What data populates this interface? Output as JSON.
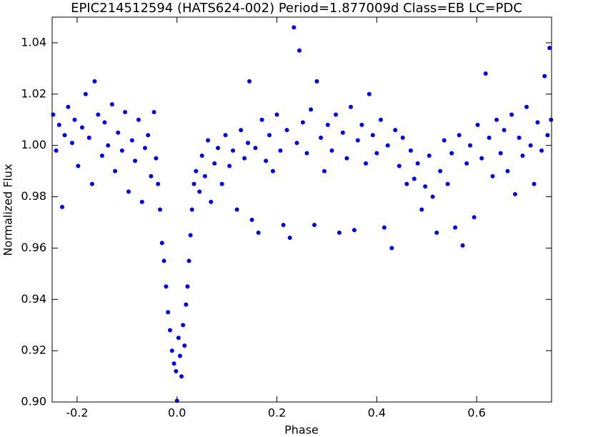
{
  "chart_data": {
    "type": "scatter",
    "title": "EPIC214512594 (HATS624-002)  Period=1.877009d  Class=EB  LC=PDC",
    "x_label": "Phase",
    "y_label": "Normalized Flux",
    "xlim": [
      -0.25,
      0.75
    ],
    "ylim": [
      0.9,
      1.05
    ],
    "xticks": [
      -0.2,
      {
        "value": 0,
        "label": "0.0"
      },
      0.2,
      0.4,
      0.6
    ],
    "yticks": [
      {
        "value": 0.9,
        "label": "0.90"
      },
      0.92,
      0.94,
      0.96,
      0.98,
      {
        "value": 1,
        "label": "1.00"
      },
      1.02,
      1.04
    ],
    "color": "#0000ff",
    "x": [
      -0.248,
      -0.242,
      -0.236,
      -0.23,
      -0.225,
      -0.218,
      -0.21,
      -0.205,
      -0.198,
      -0.19,
      -0.183,
      -0.176,
      -0.17,
      -0.165,
      -0.158,
      -0.15,
      -0.145,
      -0.138,
      -0.13,
      -0.124,
      -0.118,
      -0.11,
      -0.104,
      -0.097,
      -0.09,
      -0.084,
      -0.077,
      -0.07,
      -0.064,
      -0.058,
      -0.052,
      -0.046,
      -0.042,
      -0.038,
      -0.034,
      -0.03,
      -0.026,
      -0.022,
      -0.018,
      -0.014,
      -0.01,
      -0.006,
      -0.002,
      0.0,
      0.003,
      0.006,
      0.009,
      0.012,
      0.015,
      0.018,
      0.021,
      0.024,
      0.027,
      0.03,
      0.034,
      0.038,
      0.045,
      0.05,
      0.056,
      0.062,
      0.068,
      0.075,
      0.082,
      0.09,
      0.097,
      0.105,
      0.112,
      0.12,
      0.128,
      0.135,
      0.142,
      0.145,
      0.15,
      0.157,
      0.163,
      0.17,
      0.178,
      0.185,
      0.192,
      0.2,
      0.207,
      0.213,
      0.22,
      0.226,
      0.234,
      0.24,
      0.245,
      0.252,
      0.26,
      0.268,
      0.275,
      0.28,
      0.288,
      0.295,
      0.302,
      0.31,
      0.318,
      0.325,
      0.332,
      0.34,
      0.348,
      0.355,
      0.362,
      0.37,
      0.378,
      0.385,
      0.392,
      0.4,
      0.408,
      0.415,
      0.422,
      0.43,
      0.437,
      0.445,
      0.452,
      0.46,
      0.468,
      0.475,
      0.482,
      0.49,
      0.497,
      0.505,
      0.512,
      0.52,
      0.527,
      0.535,
      0.542,
      0.55,
      0.557,
      0.565,
      0.572,
      0.58,
      0.587,
      0.595,
      0.602,
      0.61,
      0.618,
      0.625,
      0.632,
      0.64,
      0.648,
      0.655,
      0.662,
      0.67,
      0.677,
      0.685,
      0.692,
      0.7,
      0.708,
      0.715,
      0.722,
      0.73,
      0.736,
      0.742,
      0.746,
      0.749
    ],
    "y": [
      1.012,
      0.998,
      1.008,
      0.976,
      1.004,
      1.015,
      1.001,
      1.01,
      0.992,
      1.007,
      1.02,
      1.003,
      0.985,
      1.025,
      1.012,
      0.996,
      1.009,
      1.0,
      1.016,
      0.99,
      1.005,
      0.998,
      1.013,
      0.982,
      1.002,
      0.994,
      1.01,
      0.978,
      0.999,
      1.004,
      0.988,
      1.013,
      0.995,
      0.985,
      0.975,
      0.962,
      0.955,
      0.945,
      0.935,
      0.928,
      0.92,
      0.915,
      0.912,
      0.9005,
      0.925,
      0.918,
      0.91,
      0.93,
      0.922,
      0.938,
      0.945,
      0.955,
      0.965,
      0.975,
      0.985,
      0.99,
      0.982,
      0.996,
      0.988,
      1.002,
      0.978,
      0.993,
      0.999,
      0.985,
      1.004,
      0.992,
      0.998,
      0.975,
      1.006,
      0.995,
      1.001,
      1.025,
      0.971,
      0.999,
      0.966,
      1.01,
      0.994,
      1.004,
      0.99,
      1.012,
      0.998,
      0.969,
      1.006,
      0.964,
      1.046,
      1.001,
      1.037,
      1.009,
      0.997,
      1.014,
      0.969,
      1.025,
      1.003,
      0.99,
      1.008,
      0.998,
      1.012,
      0.966,
      1.005,
      0.995,
      1.015,
      0.967,
      1.002,
      1.008,
      0.993,
      1.02,
      1.004,
      0.997,
      1.01,
      0.968,
      1.0,
      0.96,
      1.006,
      0.992,
      1.003,
      0.985,
      0.998,
      0.987,
      0.993,
      0.975,
      0.984,
      0.996,
      0.98,
      0.966,
      0.99,
      1.002,
      0.985,
      0.997,
      0.968,
      1.004,
      0.961,
      0.993,
      1.0,
      0.972,
      1.008,
      0.995,
      1.028,
      1.003,
      0.988,
      1.01,
      0.997,
      1.006,
      0.99,
      1.012,
      0.981,
      1.003,
      0.996,
      1.015,
      1.0,
      0.985,
      1.009,
      0.998,
      1.027,
      1.004,
      1.038,
      1.01
    ]
  }
}
